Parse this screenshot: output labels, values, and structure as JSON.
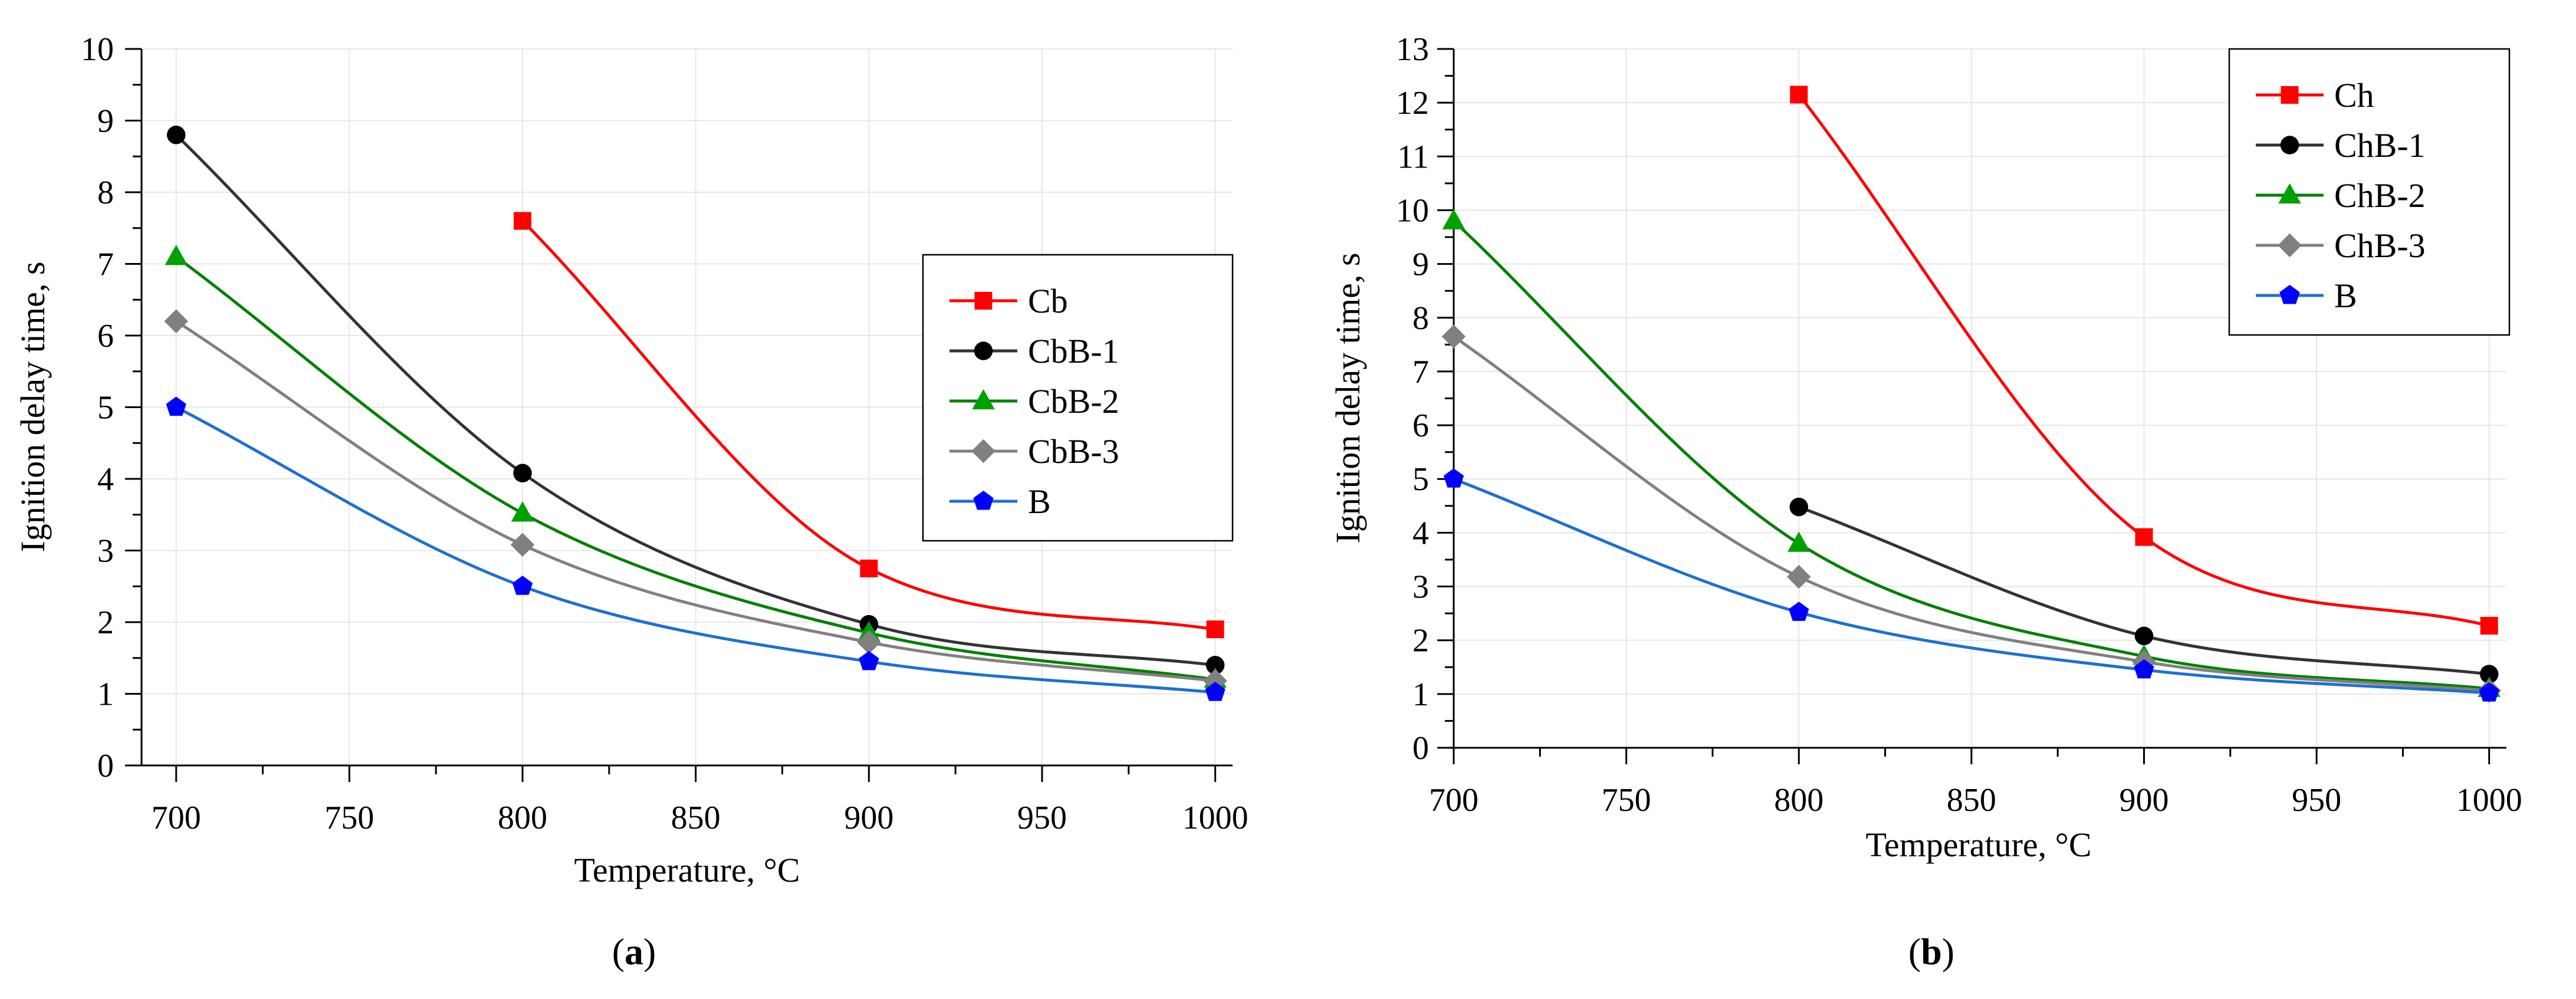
{
  "chart_data": [
    {
      "type": "line",
      "panel_label": {
        "open": "(",
        "letter": "a",
        "close": ")"
      },
      "xlabel": "Temperature, °C",
      "ylabel": "Ignition delay time, s",
      "xlim": [
        690,
        1005
      ],
      "ylim": [
        0,
        10
      ],
      "xticks": [
        700,
        750,
        800,
        850,
        900,
        950,
        1000
      ],
      "yticks": [
        0,
        1,
        2,
        3,
        4,
        5,
        6,
        7,
        8,
        9,
        10
      ],
      "grid": true,
      "legend_position": "center-right",
      "series": [
        {
          "name": "Cb",
          "color": "#ff0000",
          "marker": "square",
          "x": [
            800,
            900,
            1000
          ],
          "y": [
            7.6,
            2.75,
            1.9
          ]
        },
        {
          "name": "CbB-1",
          "color": "#000000",
          "line_color": "#333333",
          "marker": "circle",
          "x": [
            700,
            800,
            900,
            1000
          ],
          "y": [
            8.8,
            4.08,
            1.97,
            1.4
          ]
        },
        {
          "name": "CbB-2",
          "color": "#00a000",
          "line_color": "#008000",
          "marker": "triangle",
          "x": [
            700,
            800,
            900,
            1000
          ],
          "y": [
            7.1,
            3.52,
            1.85,
            1.2
          ]
        },
        {
          "name": "CbB-3",
          "color": "#808080",
          "marker": "diamond",
          "x": [
            700,
            800,
            900,
            1000
          ],
          "y": [
            6.2,
            3.08,
            1.72,
            1.18
          ]
        },
        {
          "name": "B",
          "color": "#0000ff",
          "line_color": "#1f6fd1",
          "marker": "pentagon",
          "x": [
            700,
            800,
            900,
            1000
          ],
          "y": [
            5.0,
            2.5,
            1.45,
            1.02
          ]
        }
      ]
    },
    {
      "type": "line",
      "panel_label": {
        "open": "(",
        "letter": "b",
        "close": ")"
      },
      "xlabel": "Temperature, °C",
      "ylabel": "Ignition delay time, s",
      "xlim": [
        700,
        1005
      ],
      "ylim": [
        0,
        13
      ],
      "xticks": [
        700,
        750,
        800,
        850,
        900,
        950,
        1000
      ],
      "yticks": [
        0,
        1,
        2,
        3,
        4,
        5,
        6,
        7,
        8,
        9,
        10,
        11,
        12,
        13
      ],
      "grid": true,
      "legend_position": "top-right",
      "series": [
        {
          "name": "Ch",
          "color": "#ff0000",
          "marker": "square",
          "x": [
            800,
            900,
            1000
          ],
          "y": [
            12.15,
            3.92,
            2.27
          ]
        },
        {
          "name": "ChB-1",
          "color": "#000000",
          "line_color": "#333333",
          "marker": "circle",
          "x": [
            800,
            900,
            1000
          ],
          "y": [
            4.48,
            2.08,
            1.37
          ]
        },
        {
          "name": "ChB-2",
          "color": "#00a000",
          "line_color": "#008000",
          "marker": "triangle",
          "x": [
            700,
            800,
            900,
            1000
          ],
          "y": [
            9.8,
            3.8,
            1.7,
            1.1
          ]
        },
        {
          "name": "ChB-3",
          "color": "#808080",
          "marker": "diamond",
          "x": [
            700,
            800,
            900,
            1000
          ],
          "y": [
            7.65,
            3.18,
            1.6,
            1.06
          ]
        },
        {
          "name": "B",
          "color": "#0000ff",
          "line_color": "#1f6fd1",
          "marker": "pentagon",
          "x": [
            700,
            800,
            900,
            1000
          ],
          "y": [
            5.0,
            2.52,
            1.45,
            1.02
          ]
        }
      ]
    }
  ]
}
